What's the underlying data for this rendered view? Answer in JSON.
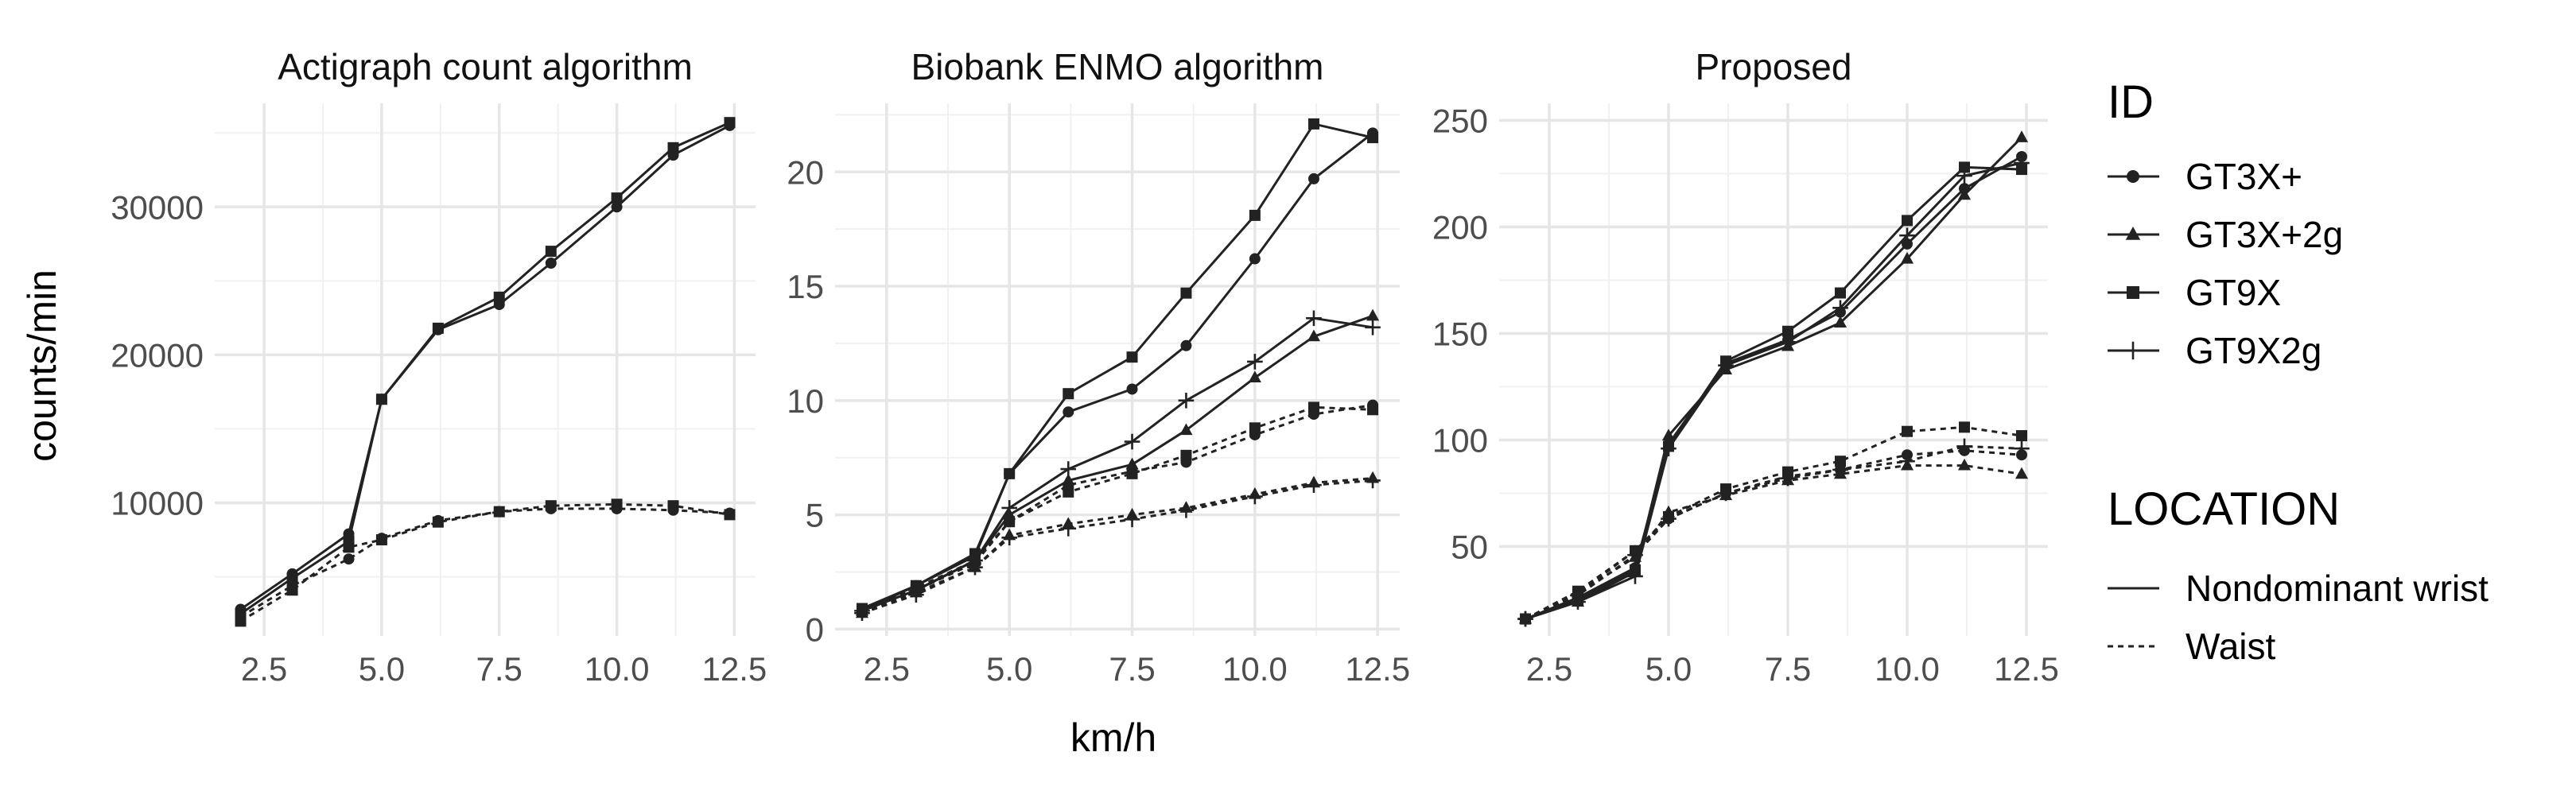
{
  "chart_data": {
    "type": "line",
    "facet_titles": [
      "Actigraph count algorithm",
      "Biobank ENMO algorithm",
      "Proposed"
    ],
    "xlabel": "km/h",
    "ylabel": "counts/min",
    "x": [
      2.0,
      3.1,
      4.3,
      5.0,
      6.2,
      7.5,
      8.6,
      10.0,
      11.2,
      12.4
    ],
    "x_ticks": [
      "2.5",
      "5.0",
      "7.5",
      "10.0",
      "12.5"
    ],
    "legend": {
      "id_title": "ID",
      "id_entries": [
        "GT3X+",
        "GT3X+2g",
        "GT9X",
        "GT9X2g"
      ],
      "location_title": "LOCATION",
      "location_entries": [
        "Nondominant wrist",
        "Waist"
      ]
    },
    "panels": [
      {
        "title": "Actigraph count algorithm",
        "y_ticks": [
          "10000",
          "20000",
          "30000"
        ],
        "series": [
          {
            "id": "GT3X+",
            "location": "Nondominant wrist",
            "values": [
              2800,
              5200,
              7900,
              17000,
              21700,
              23400,
              26200,
              30000,
              33500,
              35500
            ]
          },
          {
            "id": "GT9X",
            "location": "Nondominant wrist",
            "values": [
              2500,
              4900,
              7400,
              17000,
              21800,
              23900,
              27000,
              30600,
              34000,
              35700
            ]
          },
          {
            "id": "GT3X+",
            "location": "Waist",
            "values": [
              2300,
              4400,
              6200,
              7600,
              8800,
              9400,
              9600,
              9600,
              9500,
              9300
            ]
          },
          {
            "id": "GT9X",
            "location": "Waist",
            "values": [
              2000,
              4100,
              7000,
              7500,
              8700,
              9400,
              9800,
              9900,
              9800,
              9200
            ]
          }
        ]
      },
      {
        "title": "Biobank ENMO algorithm",
        "y_ticks": [
          "0",
          "5",
          "10",
          "15",
          "20"
        ],
        "series": [
          {
            "id": "GT3X+",
            "location": "Nondominant wrist",
            "values": [
              0.8,
              1.9,
              3.2,
              6.8,
              9.5,
              10.5,
              12.4,
              16.2,
              19.7,
              21.7
            ]
          },
          {
            "id": "GT3X+2g",
            "location": "Nondominant wrist",
            "values": [
              0.8,
              1.7,
              3.0,
              5.0,
              6.5,
              7.2,
              8.7,
              11.0,
              12.8,
              13.7
            ]
          },
          {
            "id": "GT9X",
            "location": "Nondominant wrist",
            "values": [
              0.9,
              1.9,
              3.3,
              6.8,
              10.3,
              11.9,
              14.7,
              18.1,
              22.1,
              21.5
            ]
          },
          {
            "id": "GT9X2g",
            "location": "Nondominant wrist",
            "values": [
              0.8,
              1.7,
              3.0,
              5.3,
              7.0,
              8.2,
              10.0,
              11.7,
              13.6,
              13.2
            ]
          },
          {
            "id": "GT3X+",
            "location": "Waist",
            "values": [
              0.8,
              1.7,
              2.9,
              4.7,
              6.3,
              6.9,
              7.3,
              8.5,
              9.4,
              9.8
            ]
          },
          {
            "id": "GT3X+2g",
            "location": "Waist",
            "values": [
              0.7,
              1.6,
              2.7,
              4.1,
              4.6,
              5.0,
              5.3,
              5.9,
              6.4,
              6.6
            ]
          },
          {
            "id": "GT9X",
            "location": "Waist",
            "values": [
              0.8,
              1.8,
              3.0,
              4.7,
              6.0,
              6.8,
              7.6,
              8.8,
              9.7,
              9.6
            ]
          },
          {
            "id": "GT9X2g",
            "location": "Waist",
            "values": [
              0.7,
              1.5,
              2.7,
              4.0,
              4.4,
              4.8,
              5.2,
              5.8,
              6.3,
              6.5
            ]
          }
        ]
      },
      {
        "title": "Proposed",
        "y_ticks": [
          "50",
          "100",
          "150",
          "200",
          "250"
        ],
        "series": [
          {
            "id": "GT3X+",
            "location": "Nondominant wrist",
            "values": [
              16,
              26,
              40,
              98,
              136,
              147,
              160,
              192,
              218,
              233
            ]
          },
          {
            "id": "GT3X+2g",
            "location": "Nondominant wrist",
            "values": [
              16,
              24,
              38,
              102,
              133,
              144,
              155,
              185,
              215,
              242
            ]
          },
          {
            "id": "GT9X",
            "location": "Nondominant wrist",
            "values": [
              16,
              25,
              39,
              97,
              137,
              151,
              169,
              203,
              228,
              227
            ]
          },
          {
            "id": "GT9X2g",
            "location": "Nondominant wrist",
            "values": [
              16,
              24,
              36,
              96,
              135,
              146,
              162,
              196,
              224,
              230
            ]
          },
          {
            "id": "GT3X+",
            "location": "Waist",
            "values": [
              16,
              28,
              48,
              63,
              75,
              83,
              86,
              93,
              95,
              93
            ]
          },
          {
            "id": "GT3X+2g",
            "location": "Waist",
            "values": [
              16,
              28,
              45,
              66,
              74,
              81,
              84,
              88,
              88,
              84
            ]
          },
          {
            "id": "GT9X",
            "location": "Waist",
            "values": [
              16,
              29,
              48,
              64,
              77,
              85,
              90,
              104,
              106,
              102
            ]
          },
          {
            "id": "GT9X2g",
            "location": "Waist",
            "values": [
              16,
              27,
              46,
              63,
              75,
              82,
              86,
              90,
              97,
              96
            ]
          }
        ]
      }
    ]
  }
}
